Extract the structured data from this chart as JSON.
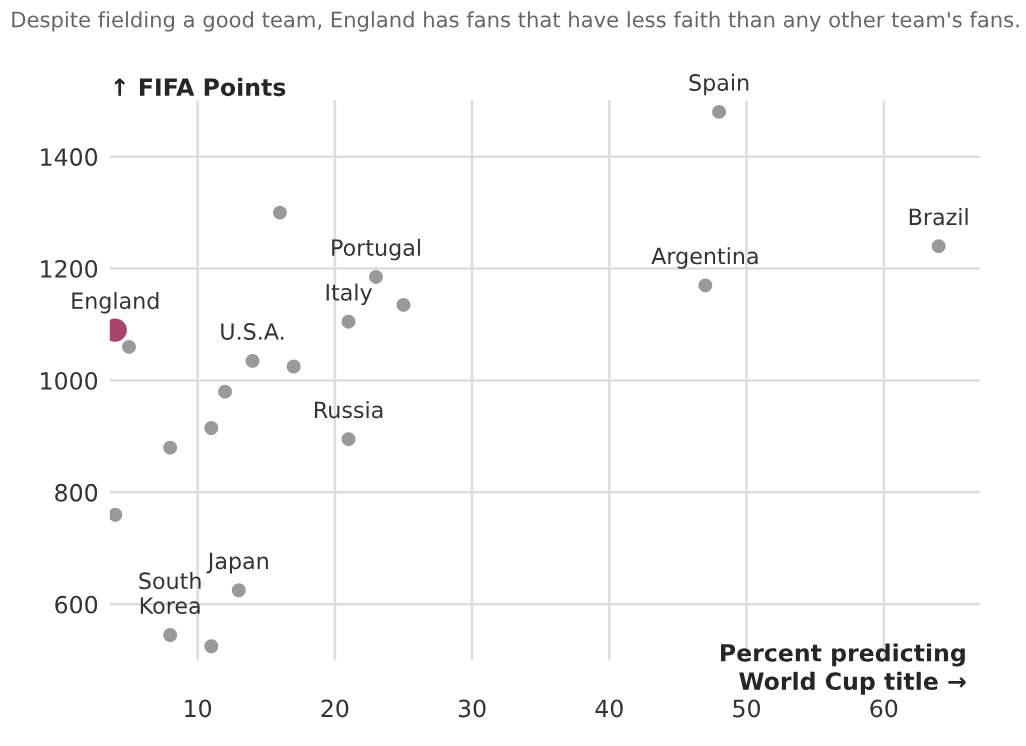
{
  "chart_data": {
    "type": "scatter",
    "title": "Despite fielding a good team, England has fans that have less faith than any other team's fans.",
    "xlabel": "Percent predicting\nWorld Cup title →",
    "ylabel": "↑ FIFA Points",
    "series": [
      {
        "color": "#999999",
        "x": [
          5,
          16,
          23,
          21,
          25,
          14,
          17,
          12,
          11,
          8,
          21,
          4,
          13,
          8,
          11,
          48,
          47,
          64
        ],
        "values": [
          1060,
          1300,
          1185,
          1105,
          1135,
          1035,
          1025,
          980,
          915,
          880,
          895,
          760,
          625,
          545,
          525,
          1480,
          1170,
          1240
        ]
      },
      {
        "color": "#a8456a",
        "x": [
          4
        ],
        "values": [
          1090
        ]
      }
    ],
    "annotations": [
      {
        "text": "England",
        "x": 4,
        "y": 1090
      },
      {
        "text": "Portugal",
        "x": 23,
        "y": 1185
      },
      {
        "text": "Italy",
        "x": 21,
        "y": 1105
      },
      {
        "text": "U.S.A.",
        "x": 14,
        "y": 1035
      },
      {
        "text": "Russia",
        "x": 21,
        "y": 895
      },
      {
        "text": "Japan",
        "x": 13,
        "y": 625
      },
      {
        "text": "South\nKorea",
        "x": 8,
        "y": 545
      },
      {
        "text": "Spain",
        "x": 48,
        "y": 1480
      },
      {
        "text": "Argentina",
        "x": 47,
        "y": 1170
      },
      {
        "text": "Brazil",
        "x": 64,
        "y": 1240
      }
    ],
    "xlim": [
      3.6,
      67
    ],
    "ylim": [
      500,
      1500
    ],
    "xticks": [
      10,
      20,
      30,
      40,
      50,
      60
    ],
    "yticks": [
      600,
      800,
      1000,
      1200,
      1400
    ],
    "grid": true,
    "marker": "circle"
  }
}
